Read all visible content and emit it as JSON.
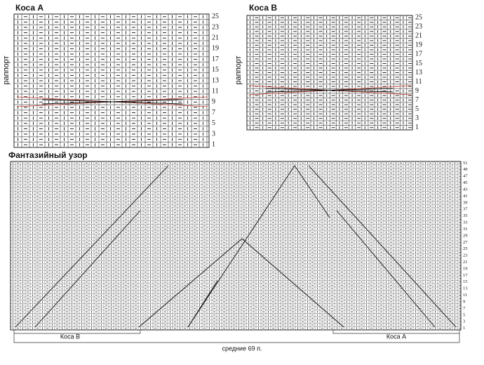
{
  "chart_a": {
    "title": "Коса А",
    "side_label": "раппорт",
    "row_numbers": [
      25,
      23,
      21,
      19,
      17,
      15,
      13,
      11,
      9,
      7,
      5,
      3,
      1
    ]
  },
  "chart_b": {
    "title": "Коса В",
    "side_label": "раппорт",
    "row_numbers": [
      25,
      23,
      21,
      19,
      17,
      15,
      13,
      11,
      9,
      7,
      5,
      3,
      1
    ]
  },
  "main_chart": {
    "title": "Фантазийный узор",
    "row_numbers": [
      51,
      49,
      47,
      45,
      43,
      41,
      39,
      37,
      35,
      33,
      31,
      29,
      27,
      25,
      23,
      21,
      19,
      17,
      15,
      13,
      11,
      9,
      7,
      5,
      3,
      1
    ],
    "left_bracket": "Коса В",
    "right_bracket": "Коса А",
    "middle_note": "средние 69 п."
  }
}
